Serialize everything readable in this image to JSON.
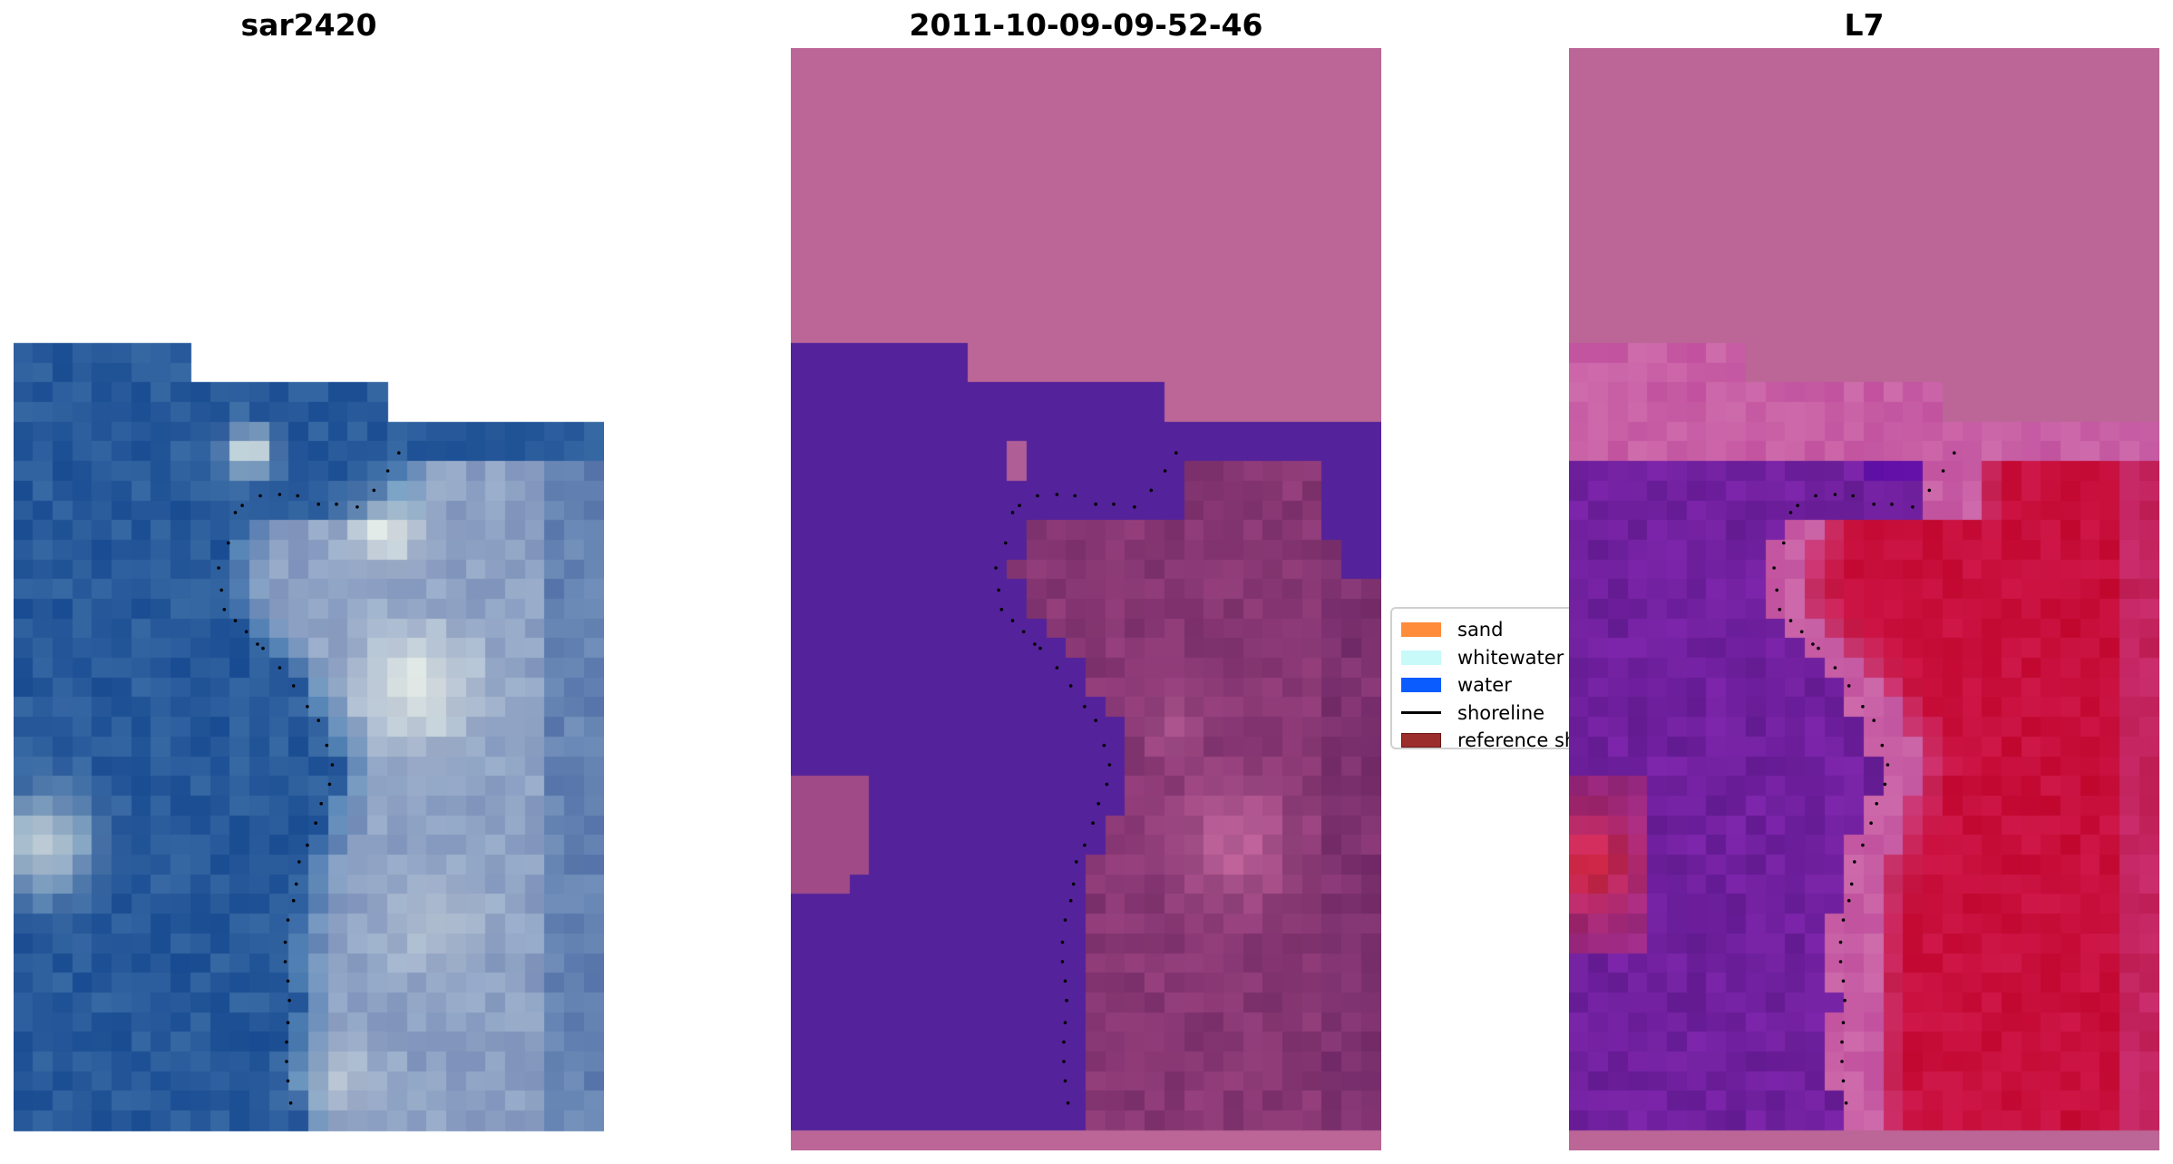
{
  "panels": [
    {
      "title": "sar2420",
      "kind": "rgb"
    },
    {
      "title": "2011-10-09-09-52-46",
      "kind": "classified"
    },
    {
      "title": "L7",
      "kind": "probability"
    }
  ],
  "legend": {
    "items": [
      {
        "label": "sand",
        "color": "#ff8c3a",
        "type": "patch"
      },
      {
        "label": "whitewater",
        "color": "#c8fafa",
        "type": "patch"
      },
      {
        "label": "water",
        "color": "#0a5cff",
        "type": "patch"
      },
      {
        "label": "shoreline",
        "color": "#000000",
        "type": "line"
      },
      {
        "label": "reference sh",
        "color": "#9b2d2d",
        "type": "patch"
      }
    ]
  },
  "colors": {
    "nodata": "#bb6696",
    "water_class": "#54229a",
    "shoreline": "#000000"
  }
}
